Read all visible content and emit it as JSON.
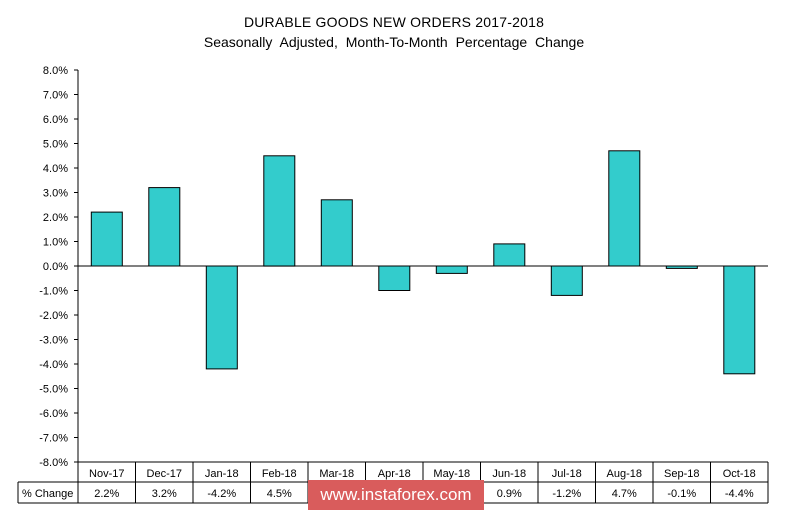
{
  "chart_data": {
    "type": "bar",
    "title": "DURABLE GOODS NEW ORDERS 2017-2018",
    "subtitle": "Seasonally  Adjusted,  Month-To-Month  Percentage  Change",
    "categories": [
      "Nov-17",
      "Dec-17",
      "Jan-18",
      "Feb-18",
      "Mar-18",
      "Apr-18",
      "May-18",
      "Jun-18",
      "Jul-18",
      "Aug-18",
      "Sep-18",
      "Oct-18"
    ],
    "values": [
      2.2,
      3.2,
      -4.2,
      4.5,
      2.7,
      -1.0,
      -0.3,
      0.9,
      -1.2,
      4.7,
      -0.1,
      -4.4
    ],
    "ylim": [
      -8,
      8
    ],
    "y_ticks": [
      "8.0%",
      "7.0%",
      "6.0%",
      "5.0%",
      "4.0%",
      "3.0%",
      "2.0%",
      "1.0%",
      "0.0%",
      "-1.0%",
      "-2.0%",
      "-3.0%",
      "-4.0%",
      "-5.0%",
      "-6.0%",
      "-7.0%",
      "-8.0%"
    ],
    "bar_color": "#33cccc",
    "table": {
      "row_label": "% Change",
      "cells": [
        "2.2%",
        "3.2%",
        "-4.2%",
        "4.5%",
        "2.7%",
        "-1.0%",
        "-0.3%",
        "0.9%",
        "-1.2%",
        "4.7%",
        "-0.1%",
        "-4.4%"
      ]
    }
  },
  "watermark": "www.instaforex.com",
  "colors": {
    "watermark_bg": "#d95c5c"
  }
}
